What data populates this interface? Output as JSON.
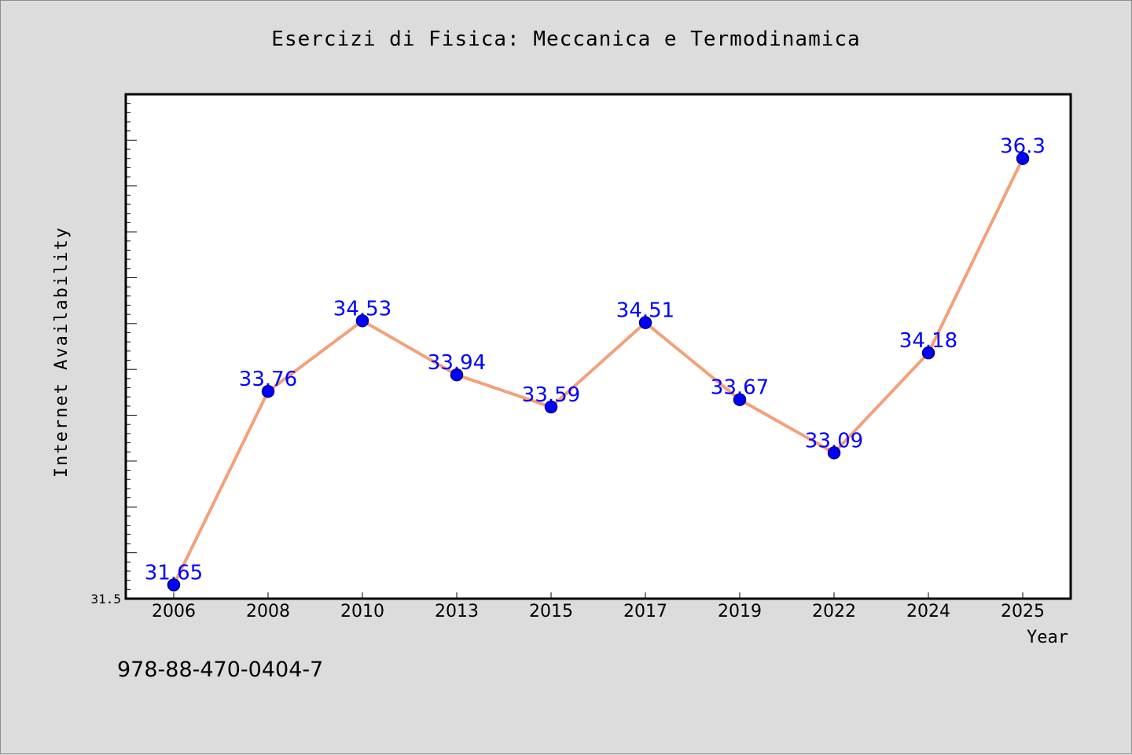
{
  "chart_data": {
    "type": "line",
    "title": "Esercizi di Fisica: Meccanica e Termodinamica",
    "xlabel": "Year",
    "ylabel": "Internet Availability",
    "categories": [
      "2006",
      "2008",
      "2010",
      "2013",
      "2015",
      "2017",
      "2019",
      "2022",
      "2024",
      "2025"
    ],
    "series": [
      {
        "values": [
          31.65,
          33.76,
          34.53,
          33.94,
          33.59,
          34.51,
          33.67,
          33.09,
          34.18,
          36.3
        ]
      }
    ],
    "data_labels": [
      "31.65",
      "33.76",
      "34.53",
      "33.94",
      "33.59",
      "34.51",
      "33.67",
      "33.09",
      "34.18",
      "36.3"
    ],
    "y_tick_labels": [
      "31.5"
    ],
    "ylim": [
      31.5,
      37.0
    ],
    "grid": false,
    "legend": "none",
    "colors": {
      "line": "#f4a07a",
      "marker": "#0000ff",
      "marker_edge": "#000080",
      "data_label": "#0000ff",
      "plot_background": "#ffffff",
      "page_background": "#dcdcdc"
    }
  },
  "footer_text": "978-88-470-0404-7"
}
